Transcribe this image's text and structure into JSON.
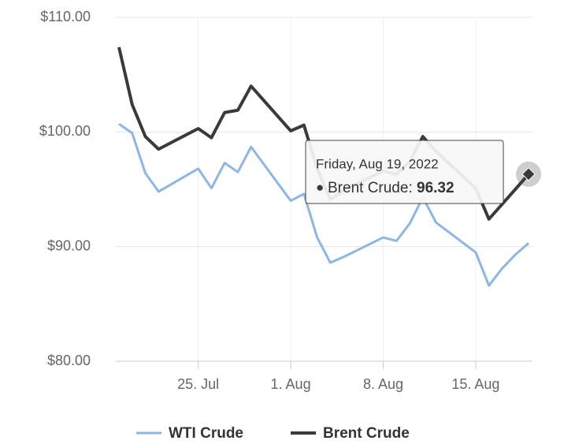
{
  "chart_data": {
    "type": "line",
    "x": [
      "2022-07-19",
      "2022-07-20",
      "2022-07-21",
      "2022-07-22",
      "2022-07-25",
      "2022-07-26",
      "2022-07-27",
      "2022-07-28",
      "2022-07-29",
      "2022-08-01",
      "2022-08-02",
      "2022-08-03",
      "2022-08-04",
      "2022-08-05",
      "2022-08-08",
      "2022-08-09",
      "2022-08-10",
      "2022-08-11",
      "2022-08-12",
      "2022-08-15",
      "2022-08-16",
      "2022-08-17",
      "2022-08-18",
      "2022-08-19"
    ],
    "series": [
      {
        "name": "WTI Crude",
        "color": "#8db6e6",
        "values": [
          100.7,
          99.9,
          96.4,
          94.8,
          96.8,
          95.1,
          97.3,
          96.5,
          98.7,
          94.0,
          94.6,
          90.8,
          88.6,
          89.1,
          90.8,
          90.5,
          92.0,
          94.3,
          92.1,
          89.5,
          86.6,
          88.1,
          89.3,
          90.3
        ]
      },
      {
        "name": "Brent Crude",
        "color": "#3a3a3c",
        "values": [
          107.4,
          102.4,
          99.6,
          98.5,
          100.3,
          99.5,
          101.7,
          101.9,
          104.0,
          100.1,
          100.6,
          96.8,
          94.1,
          94.9,
          96.6,
          96.3,
          97.4,
          99.6,
          98.3,
          95.1,
          92.4,
          93.7,
          95.0,
          96.32
        ]
      }
    ],
    "xlim": [
      "2022-07-19",
      "2022-08-19"
    ],
    "xticks": [
      {
        "value": "2022-07-25",
        "label": "25. Jul"
      },
      {
        "value": "2022-08-01",
        "label": "1. Aug"
      },
      {
        "value": "2022-08-08",
        "label": "8. Aug"
      },
      {
        "value": "2022-08-15",
        "label": "15. Aug"
      }
    ],
    "ylim": [
      80,
      110
    ],
    "yticks": [
      {
        "value": 80,
        "label": "$80.00"
      },
      {
        "value": 90,
        "label": "$90.00"
      },
      {
        "value": 100,
        "label": "$100.00"
      },
      {
        "value": 110,
        "label": "$110.00"
      }
    ],
    "grid": true,
    "legend": "bottom",
    "tooltip": {
      "header": "Friday, Aug 19, 2022"
    }
  }
}
